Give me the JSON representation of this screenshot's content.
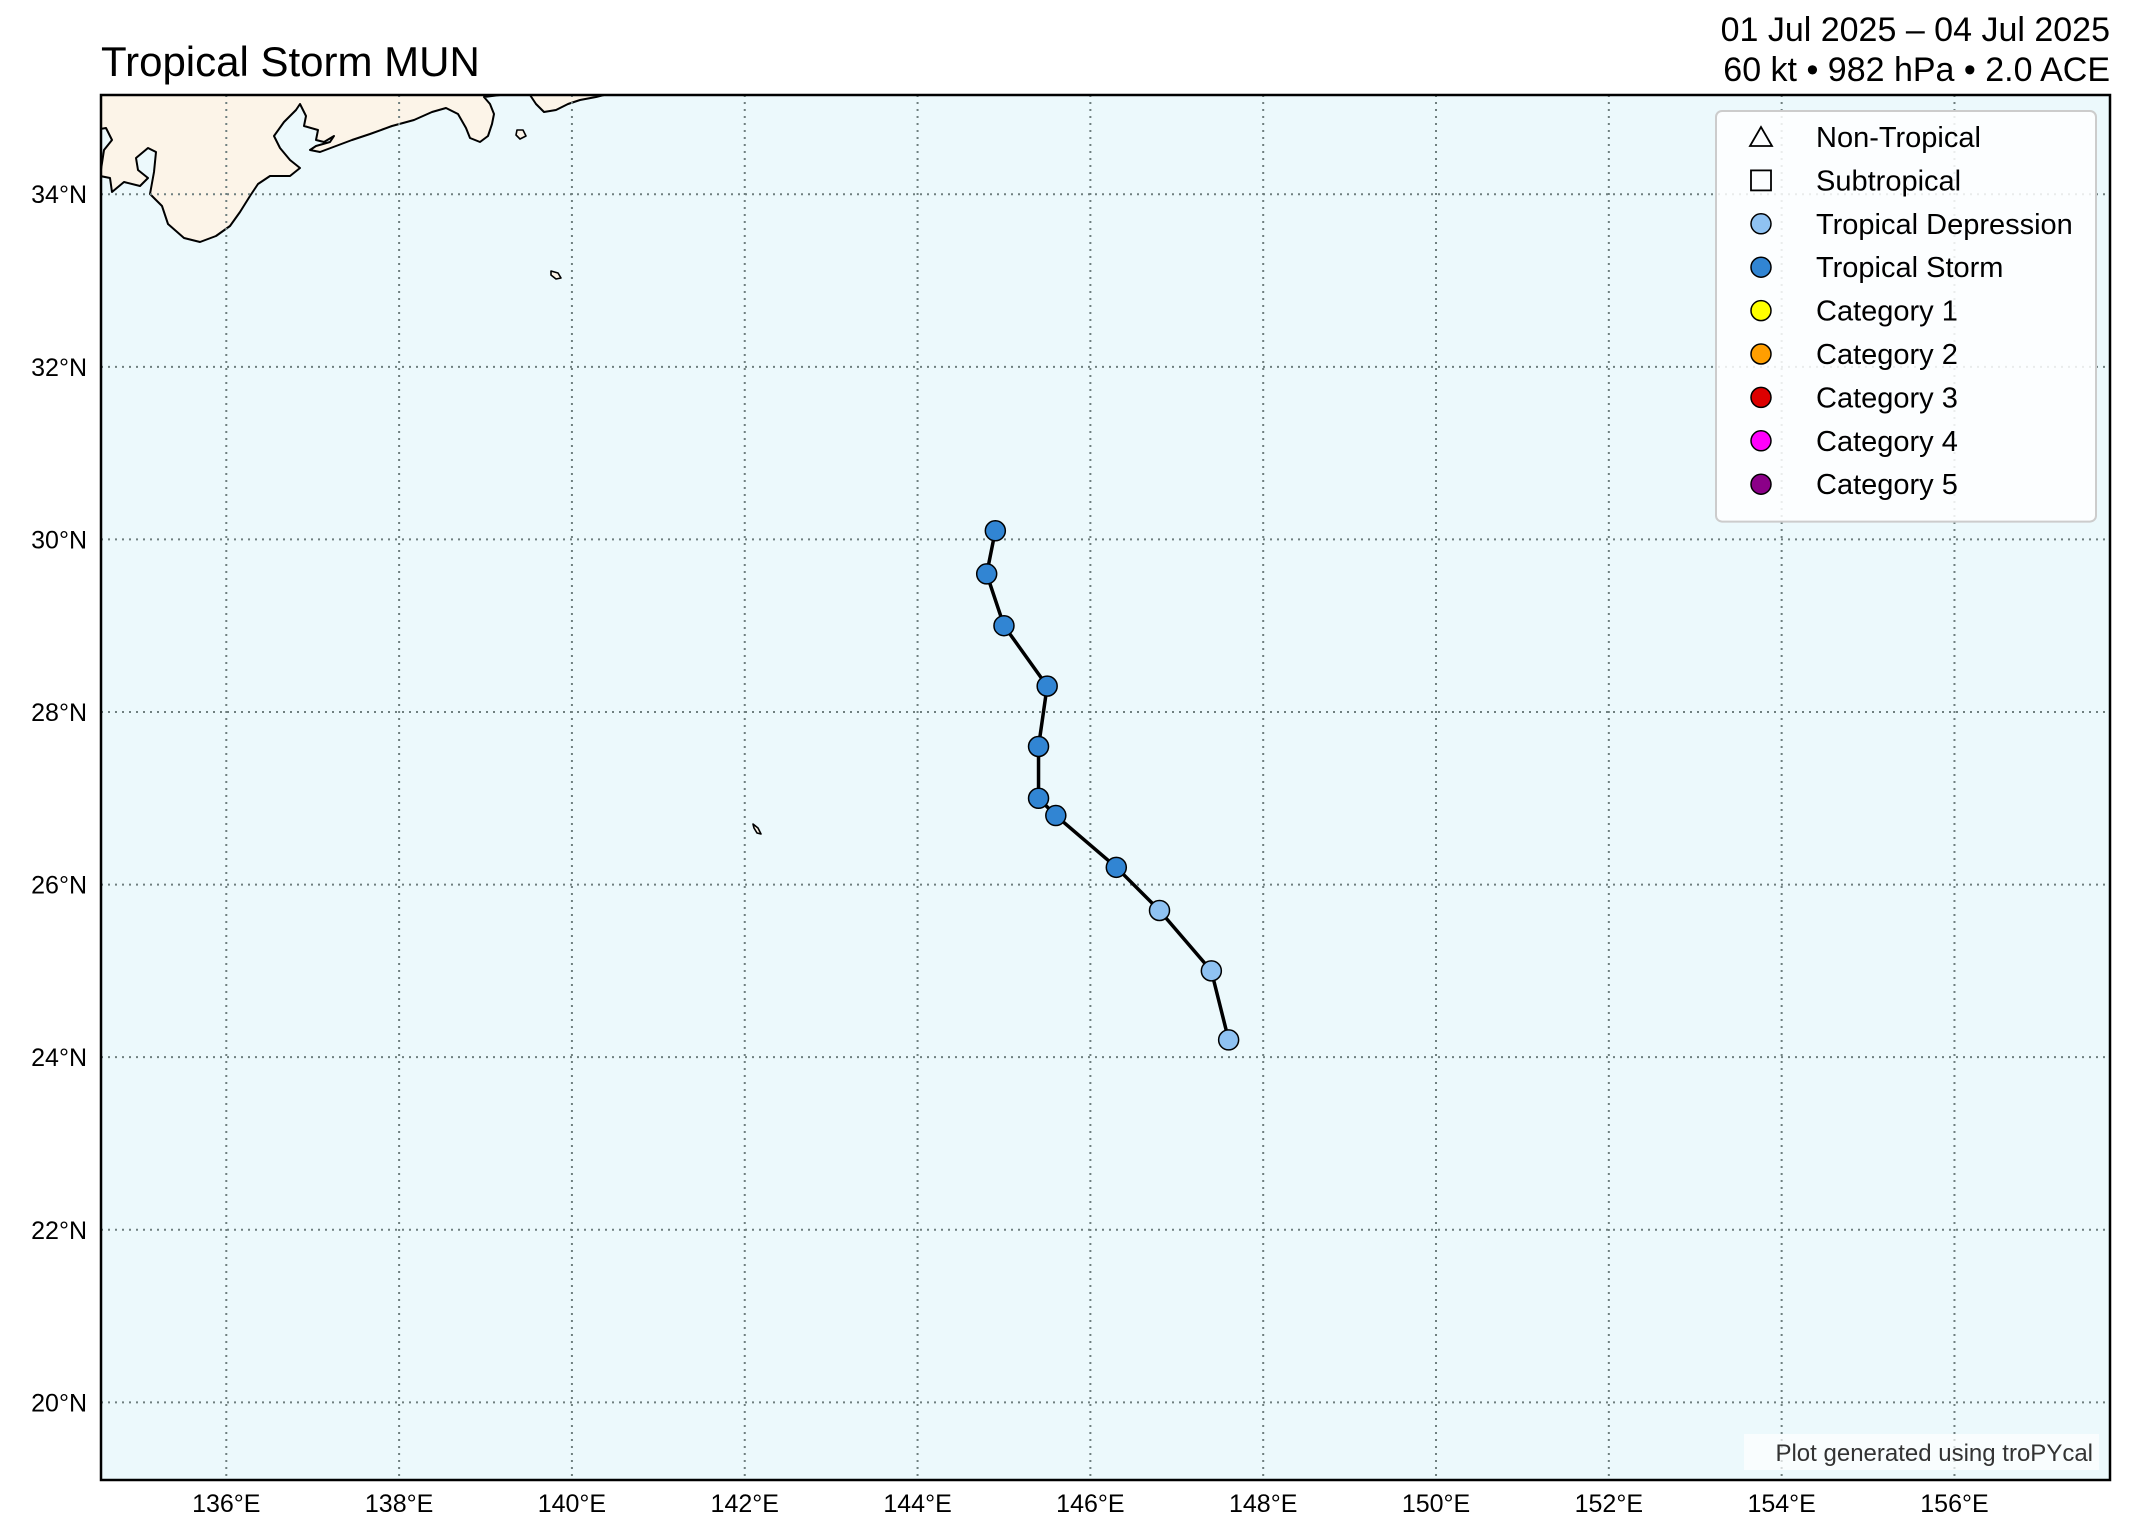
{
  "header": {
    "title": "Tropical Storm MUN",
    "date_range": "01 Jul 2025 – 04 Jul 2025",
    "stats": "60 kt • 982 hPa • 2.0 ACE"
  },
  "map": {
    "lon_range": [
      134.55,
      157.8
    ],
    "lat_range": [
      19.1,
      35.15
    ],
    "grid": true,
    "ocean_color": "#ecf9fc",
    "land_color": "#fcf4e8",
    "lon_ticks": [
      {
        "value": 136,
        "label": "136°E"
      },
      {
        "value": 138,
        "label": "138°E"
      },
      {
        "value": 140,
        "label": "140°E"
      },
      {
        "value": 142,
        "label": "142°E"
      },
      {
        "value": 144,
        "label": "144°E"
      },
      {
        "value": 146,
        "label": "146°E"
      },
      {
        "value": 148,
        "label": "148°E"
      },
      {
        "value": 150,
        "label": "150°E"
      },
      {
        "value": 152,
        "label": "152°E"
      },
      {
        "value": 154,
        "label": "154°E"
      },
      {
        "value": 156,
        "label": "156°E"
      }
    ],
    "lat_ticks": [
      {
        "value": 20,
        "label": "20°N"
      },
      {
        "value": 22,
        "label": "22°N"
      },
      {
        "value": 24,
        "label": "24°N"
      },
      {
        "value": 26,
        "label": "26°N"
      },
      {
        "value": 28,
        "label": "28°N"
      },
      {
        "value": 30,
        "label": "30°N"
      },
      {
        "value": 32,
        "label": "32°N"
      },
      {
        "value": 34,
        "label": "34°N"
      }
    ]
  },
  "track": {
    "line_color": "#000000",
    "points": [
      {
        "lon": 147.6,
        "lat": 24.2,
        "category": "Tropical Depression"
      },
      {
        "lon": 147.4,
        "lat": 25.0,
        "category": "Tropical Depression"
      },
      {
        "lon": 146.8,
        "lat": 25.7,
        "category": "Tropical Depression"
      },
      {
        "lon": 146.3,
        "lat": 26.2,
        "category": "Tropical Storm"
      },
      {
        "lon": 145.6,
        "lat": 26.8,
        "category": "Tropical Storm"
      },
      {
        "lon": 145.4,
        "lat": 27.0,
        "category": "Tropical Storm"
      },
      {
        "lon": 145.4,
        "lat": 27.6,
        "category": "Tropical Storm"
      },
      {
        "lon": 145.5,
        "lat": 28.3,
        "category": "Tropical Storm"
      },
      {
        "lon": 145.0,
        "lat": 29.0,
        "category": "Tropical Storm"
      },
      {
        "lon": 144.8,
        "lat": 29.6,
        "category": "Tropical Storm"
      },
      {
        "lon": 144.9,
        "lat": 30.1,
        "category": "Tropical Storm"
      }
    ]
  },
  "legend": {
    "placement": "top-right",
    "items": [
      {
        "label": "Non-Tropical",
        "shape": "triangle",
        "color": "none"
      },
      {
        "label": "Subtropical",
        "shape": "square",
        "color": "none"
      },
      {
        "label": "Tropical Depression",
        "shape": "circle",
        "color": "#8fc2f2"
      },
      {
        "label": "Tropical Storm",
        "shape": "circle",
        "color": "#3185d3"
      },
      {
        "label": "Category 1",
        "shape": "circle",
        "color": "#ffff00"
      },
      {
        "label": "Category 2",
        "shape": "circle",
        "color": "#ff9e00"
      },
      {
        "label": "Category 3",
        "shape": "circle",
        "color": "#dd0000"
      },
      {
        "label": "Category 4",
        "shape": "circle",
        "color": "#ff00fc"
      },
      {
        "label": "Category 5",
        "shape": "circle",
        "color": "#8b0088"
      }
    ]
  },
  "credit": "Plot generated using troPYcal"
}
